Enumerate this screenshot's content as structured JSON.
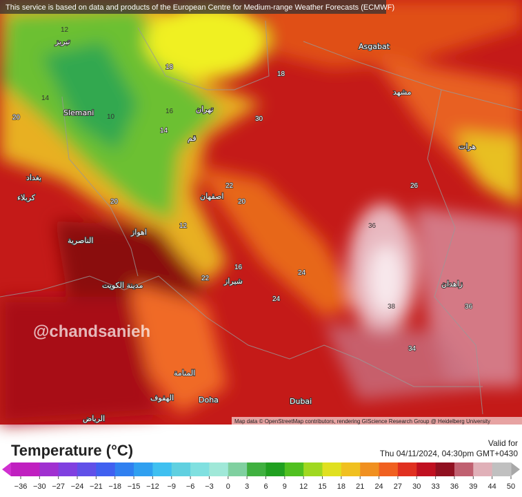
{
  "banner": "This service is based on data and products of the European Centre for Medium-range Weather Forecasts (ECMWF)",
  "watermark": "@chandsanieh",
  "attribution": "Map data © OpenStreetMap contributors, rendering GIScience Research Group @ Heidelberg University",
  "cities": [
    "Asgabat",
    "Slemani",
    "Dubai",
    "Doha",
    "تهران",
    "مشهد",
    "اصفهان",
    "شیراز",
    "زاهدان",
    "بغداد",
    "كربلاء",
    "الناصرية",
    "مدينة الكويت",
    "المنامة",
    "الهفوف",
    "الرياض",
    "هرات",
    "قم",
    "اهواز",
    "تبریز"
  ],
  "map_values": [
    12,
    14,
    10,
    16,
    18,
    20,
    22,
    24,
    26,
    30,
    36,
    38,
    34,
    36,
    18,
    20,
    22,
    24,
    16,
    14,
    12,
    20
  ],
  "legend": {
    "title": "Temperature (°C)",
    "valid_label": "Valid for",
    "valid_time": "Thu 04/11/2024, 04:30pm GMT+0430",
    "ticks": [
      {
        "value": -36,
        "label": "−36"
      },
      {
        "value": -30,
        "label": "−30"
      },
      {
        "value": -27,
        "label": "−27"
      },
      {
        "value": -24,
        "label": "−24"
      },
      {
        "value": -21,
        "label": "−21"
      },
      {
        "value": -18,
        "label": "−18"
      },
      {
        "value": -15,
        "label": "−15"
      },
      {
        "value": -12,
        "label": "−12"
      },
      {
        "value": -9,
        "label": "−9"
      },
      {
        "value": -6,
        "label": "−6"
      },
      {
        "value": -3,
        "label": "−3"
      },
      0,
      3,
      6,
      9,
      12,
      15,
      18,
      21,
      24,
      27,
      30,
      33,
      36,
      39,
      44,
      50
    ],
    "colors": [
      "#c020c0",
      "#a030d0",
      "#8040e0",
      "#6050e8",
      "#4060f0",
      "#3080f0",
      "#30a0f0",
      "#40c0f0",
      "#60d0e0",
      "#80e0e0",
      "#a0e8d8",
      "#80d0a0",
      "#40b040",
      "#20a020",
      "#50c020",
      "#a0d820",
      "#e0e020",
      "#f0c020",
      "#f09020",
      "#f06020",
      "#e03020",
      "#c01020",
      "#901020",
      "#c06070",
      "#e0b0b8",
      "#c0c0c0"
    ]
  }
}
